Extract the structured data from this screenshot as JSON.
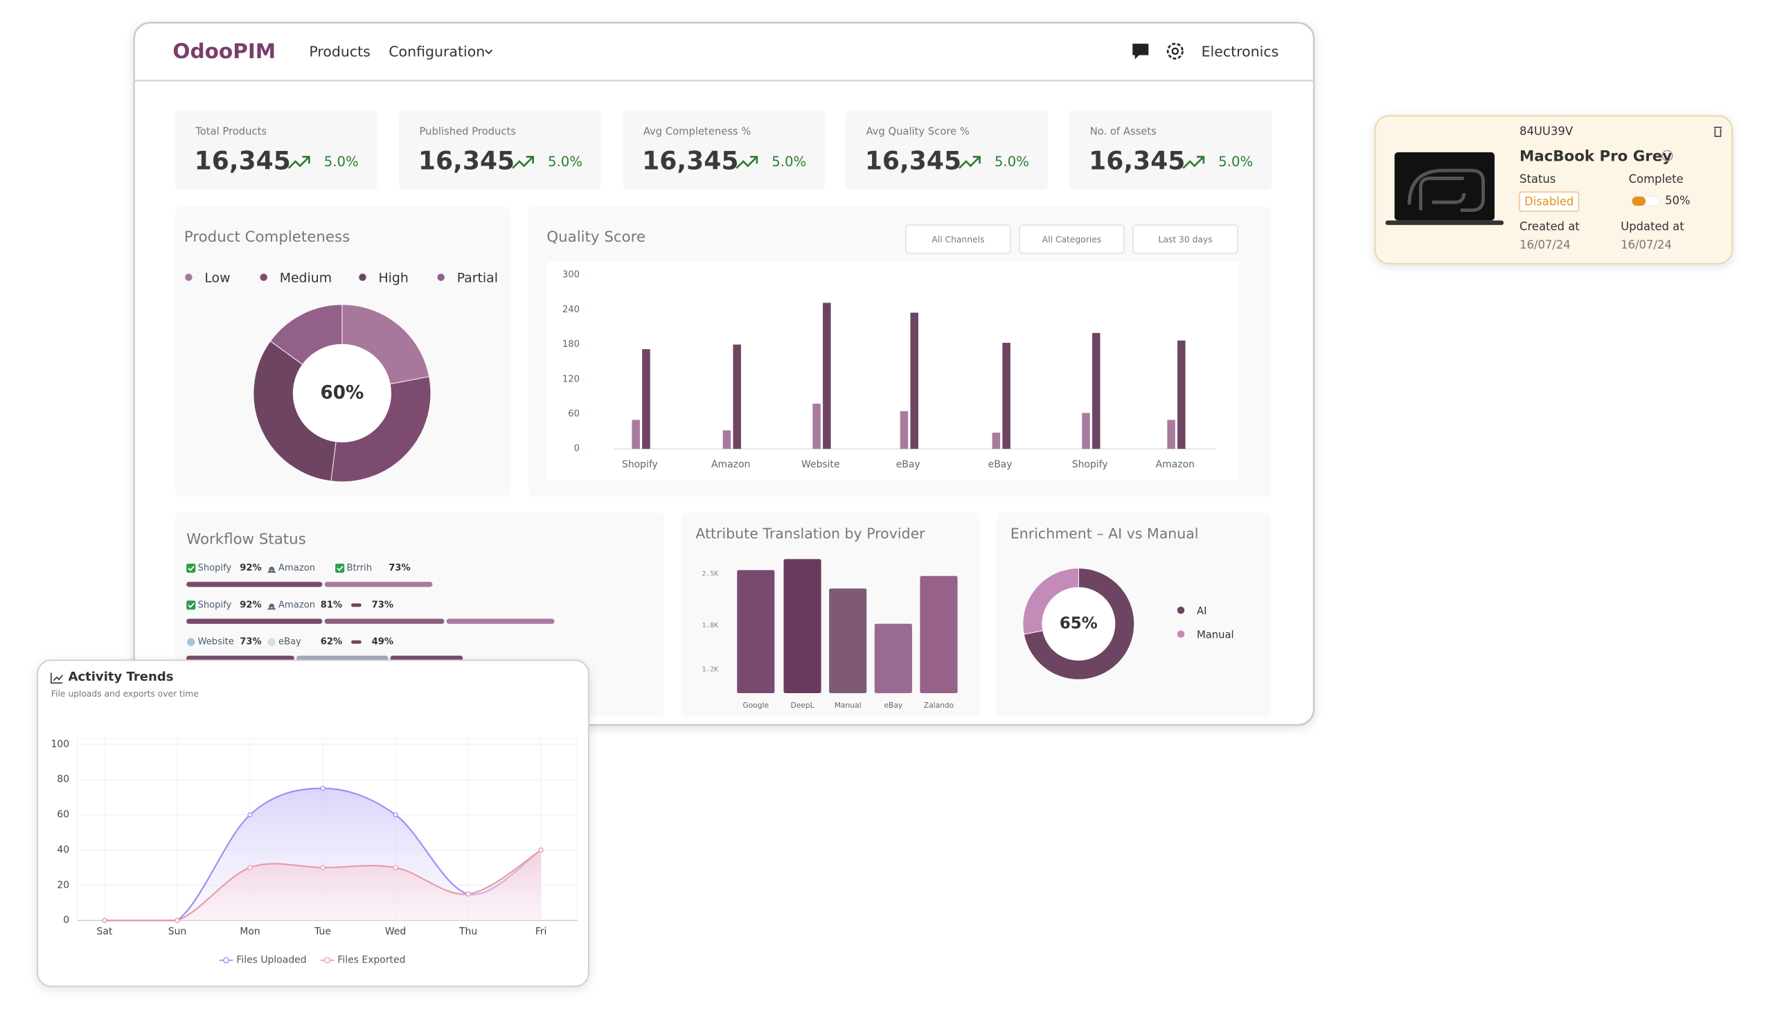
{
  "nav": {
    "logo": "OdooPIM",
    "menu": [
      "Products",
      "Configuration"
    ],
    "store": "Electronics"
  },
  "kpis": [
    {
      "label": "Total Products",
      "value": "16,345",
      "change": "5.0%"
    },
    {
      "label": "Published Products",
      "value": "16,345",
      "change": "5.0%"
    },
    {
      "label": "Avg Completeness %",
      "value": "16,345",
      "change": "5.0%"
    },
    {
      "label": "Avg Quality Score %",
      "value": "16,345",
      "change": "5.0%"
    },
    {
      "label": "No. of Assets",
      "value": "16,345",
      "change": "5.0%"
    }
  ],
  "workflow": {
    "title": "Workflow Status",
    "rows": [
      {
        "labels": [
          "Shopify",
          "Amazon",
          "Btrrih"
        ],
        "values": [
          92,
          null,
          73
        ],
        "value_labels": [
          "92%",
          null,
          "73%"
        ]
      },
      {
        "labels": [
          "Shopify",
          "Amazon",
          null
        ],
        "values": [
          92,
          81,
          73
        ],
        "value_labels": [
          "92%",
          "81%",
          "73%"
        ]
      },
      {
        "labels": [
          "Website",
          "eBay",
          null
        ],
        "values": [
          73,
          62,
          49
        ],
        "value_labels": [
          "73%",
          "62%",
          "49%"
        ]
      }
    ]
  },
  "product_card": {
    "code": "84UU39V",
    "name": "MacBook Pro Grey",
    "status_label": "Status",
    "status": "Disabled",
    "complete_label": "Complete",
    "complete": 50,
    "complete_value_label": "50%",
    "created_label": "Created at",
    "created": "16/07/24",
    "updated_label": "Updated at",
    "updated": "16/07/24"
  },
  "chart_data": [
    {
      "type": "pie",
      "title": "Product Completeness",
      "categories": [
        "Low",
        "Medium",
        "High",
        "Partial"
      ],
      "values": [
        22,
        30,
        33,
        15
      ],
      "colors": [
        "#a8779c",
        "#7e4b70",
        "#6d4462",
        "#93608a"
      ],
      "center_label": "60%"
    },
    {
      "type": "bar",
      "title": "Quality Score",
      "filters": [
        "All Channels",
        "All Categories",
        "Last 30 days"
      ],
      "categories": [
        "Shopify",
        "Amazon",
        "Website",
        "eBay",
        "eBay",
        "Shopify",
        "Amazon"
      ],
      "series": [
        {
          "color": "#a87a9e",
          "values": [
            50,
            32,
            78,
            65,
            28,
            62,
            50
          ]
        },
        {
          "color": "#6d4462",
          "values": [
            172,
            180,
            252,
            235,
            183,
            200,
            187
          ]
        }
      ],
      "ylim": [
        0,
        300
      ],
      "yticks": [
        0,
        60,
        120,
        180,
        240,
        300
      ]
    },
    {
      "type": "bar",
      "title": "Attribute Translation by Provider",
      "categories": [
        "Google",
        "DeepL",
        "Manual",
        "eBay",
        "Zalando"
      ],
      "values": [
        2550,
        2700,
        2300,
        1820,
        2470
      ],
      "colors": [
        "#7a4a6e",
        "#6a3a5e",
        "#7f5a75",
        "#9a6b90",
        "#966288"
      ],
      "ylim": [
        875,
        2700
      ],
      "yticks": [
        {
          "value": 1200,
          "label": "1.2K"
        },
        {
          "value": 1800,
          "label": "1.8K"
        },
        {
          "value": 2500,
          "label": "2.5K"
        }
      ]
    },
    {
      "type": "pie",
      "title": "Enrichment – AI vs Manual",
      "categories": [
        "AI",
        "Manual"
      ],
      "values": [
        72,
        28
      ],
      "colors": [
        "#6d4462",
        "#c48ab8"
      ],
      "center_label": "65%"
    },
    {
      "type": "line",
      "title": "Activity Trends",
      "subtitle": "File uploads and exports over time",
      "categories": [
        "Sat",
        "Sun",
        "Mon",
        "Tue",
        "Wed",
        "Thu",
        "Fri"
      ],
      "series": [
        {
          "name": "Files Uploaded",
          "color": "#9b8cf0",
          "values": [
            0,
            0,
            60,
            75,
            60,
            15,
            40
          ]
        },
        {
          "name": "Files Exported",
          "color": "#e99aa8",
          "values": [
            0,
            0,
            30,
            30,
            30,
            15,
            40
          ]
        }
      ],
      "ylim": [
        0,
        100
      ],
      "yticks": [
        0,
        20,
        40,
        60,
        80,
        100
      ],
      "grid": true
    }
  ]
}
